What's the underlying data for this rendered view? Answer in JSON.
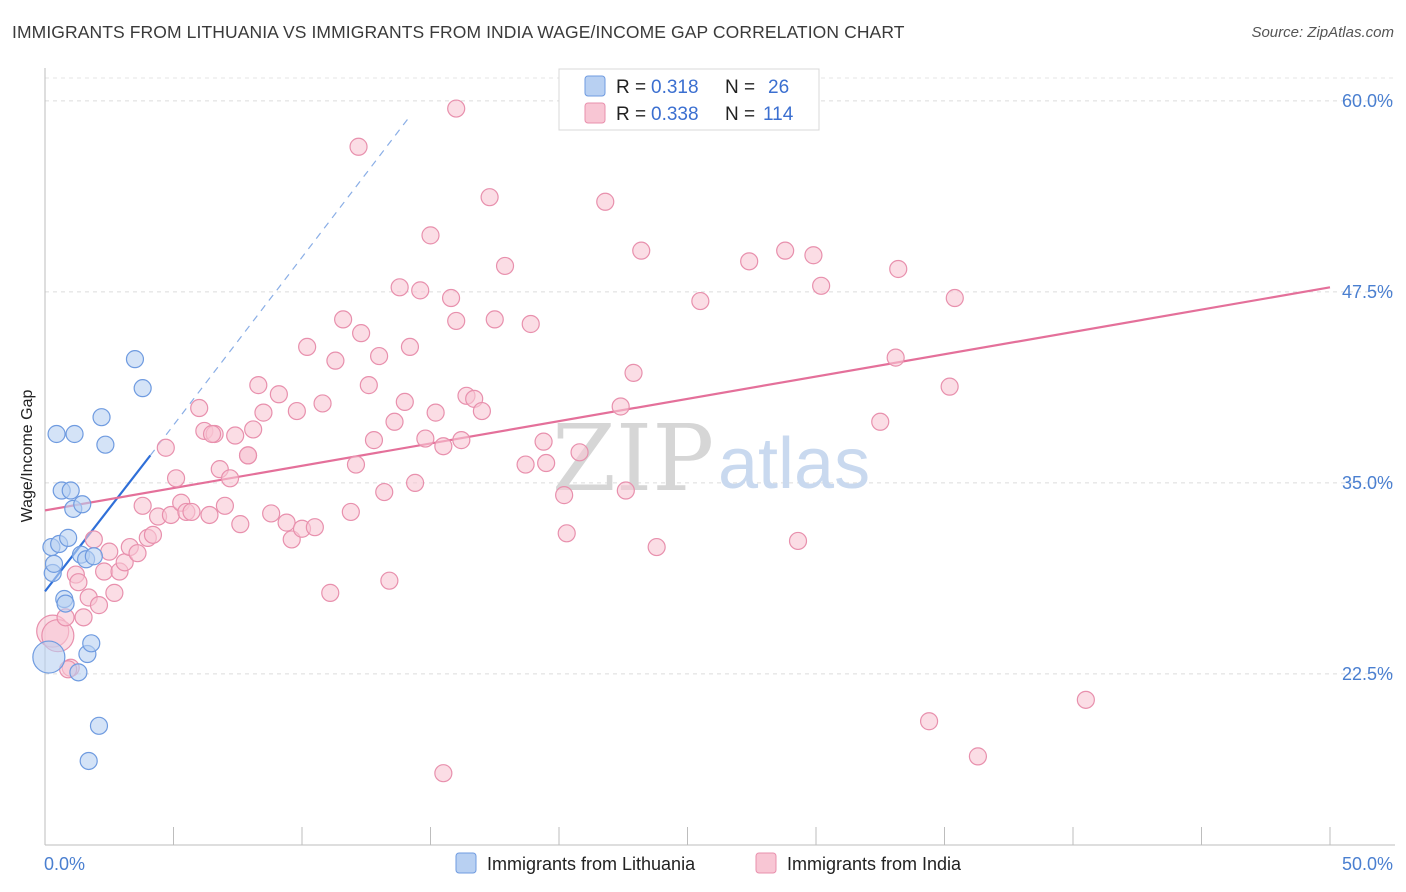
{
  "title": "IMMIGRANTS FROM LITHUANIA VS IMMIGRANTS FROM INDIA WAGE/INCOME GAP CORRELATION CHART",
  "source": "Source: ZipAtlas.com",
  "watermark": {
    "zip": "ZIP",
    "atlas": "atlas"
  },
  "legend": {
    "r_label": "R =",
    "n_label": "N =",
    "entries": [
      {
        "r": "0.318",
        "n": "26",
        "fill": "#b8d0f2",
        "stroke": "#6f9be0"
      },
      {
        "r": "0.338",
        "n": "114",
        "fill": "#f8c6d4",
        "stroke": "#e890ad"
      }
    ]
  },
  "chart_data": {
    "type": "scatter",
    "title": "IMMIGRANTS FROM LITHUANIA VS IMMIGRANTS FROM INDIA WAGE/INCOME GAP CORRELATION CHART",
    "xlabel": "",
    "ylabel": "Wage/Income Gap",
    "xlim": [
      0,
      50
    ],
    "ylim": [
      11.3,
      61.5
    ],
    "x_tick_labels": [
      "0.0%",
      "50.0%"
    ],
    "x_minor_ticks": [
      0,
      5,
      10,
      15,
      20,
      25,
      30,
      35,
      40,
      45,
      50
    ],
    "y_ticks": [
      22.5,
      35.0,
      47.5,
      60.0
    ],
    "y_tick_labels": [
      "22.5%",
      "35.0%",
      "47.5%",
      "60.0%"
    ],
    "grid": true,
    "legend_position": "top-center",
    "series": [
      {
        "name": "Immigrants from Lithuania",
        "color": "#6f9be0",
        "fill": "#b8d0f2",
        "trend": {
          "x": [
            0.0,
            4.1
          ],
          "y": [
            27.9,
            36.8
          ],
          "color": "#2f6fd8"
        },
        "trend_extension": {
          "x": [
            4.1,
            14.2
          ],
          "y": [
            36.8,
            59.0
          ]
        },
        "points": [
          {
            "x": 0.15,
            "y": 23.6,
            "big": true
          },
          {
            "x": 0.25,
            "y": 30.8
          },
          {
            "x": 0.3,
            "y": 29.1
          },
          {
            "x": 0.35,
            "y": 29.7
          },
          {
            "x": 0.45,
            "y": 38.2
          },
          {
            "x": 0.55,
            "y": 31.0
          },
          {
            "x": 0.65,
            "y": 34.5
          },
          {
            "x": 0.75,
            "y": 27.4
          },
          {
            "x": 0.8,
            "y": 27.1
          },
          {
            "x": 0.9,
            "y": 31.4
          },
          {
            "x": 1.0,
            "y": 34.5
          },
          {
            "x": 1.1,
            "y": 33.3
          },
          {
            "x": 1.15,
            "y": 38.2
          },
          {
            "x": 1.3,
            "y": 22.6
          },
          {
            "x": 1.4,
            "y": 30.3
          },
          {
            "x": 1.45,
            "y": 33.6
          },
          {
            "x": 1.6,
            "y": 30.0
          },
          {
            "x": 1.65,
            "y": 23.8
          },
          {
            "x": 1.7,
            "y": 16.8
          },
          {
            "x": 1.8,
            "y": 24.5
          },
          {
            "x": 1.9,
            "y": 30.2
          },
          {
            "x": 2.1,
            "y": 19.1
          },
          {
            "x": 2.2,
            "y": 39.3
          },
          {
            "x": 2.35,
            "y": 37.5
          },
          {
            "x": 3.5,
            "y": 43.1
          },
          {
            "x": 3.8,
            "y": 41.2
          }
        ]
      },
      {
        "name": "Immigrants from India",
        "color": "#e890ad",
        "fill": "#f8c6d4",
        "trend": {
          "x": [
            0.0,
            50.0
          ],
          "y": [
            33.2,
            47.8
          ],
          "color": "#e4709a"
        },
        "points": [
          {
            "x": 0.3,
            "y": 25.3,
            "big": true
          },
          {
            "x": 0.5,
            "y": 25.0,
            "big": true
          },
          {
            "x": 0.8,
            "y": 26.2
          },
          {
            "x": 1.0,
            "y": 22.9
          },
          {
            "x": 1.2,
            "y": 29.0
          },
          {
            "x": 1.3,
            "y": 28.5
          },
          {
            "x": 1.5,
            "y": 26.2
          },
          {
            "x": 1.7,
            "y": 27.5
          },
          {
            "x": 1.9,
            "y": 31.3
          },
          {
            "x": 2.1,
            "y": 27.0
          },
          {
            "x": 2.3,
            "y": 29.2
          },
          {
            "x": 2.5,
            "y": 30.5
          },
          {
            "x": 2.7,
            "y": 27.8
          },
          {
            "x": 2.9,
            "y": 29.2
          },
          {
            "x": 3.1,
            "y": 29.8
          },
          {
            "x": 3.3,
            "y": 30.8
          },
          {
            "x": 3.6,
            "y": 30.4
          },
          {
            "x": 3.8,
            "y": 33.5
          },
          {
            "x": 4.0,
            "y": 31.4
          },
          {
            "x": 4.2,
            "y": 31.6
          },
          {
            "x": 4.4,
            "y": 32.8
          },
          {
            "x": 4.7,
            "y": 37.3
          },
          {
            "x": 4.9,
            "y": 32.9
          },
          {
            "x": 5.1,
            "y": 35.3
          },
          {
            "x": 5.3,
            "y": 33.7
          },
          {
            "x": 5.5,
            "y": 33.1
          },
          {
            "x": 5.7,
            "y": 33.1
          },
          {
            "x": 6.0,
            "y": 39.9
          },
          {
            "x": 6.2,
            "y": 38.4
          },
          {
            "x": 6.4,
            "y": 32.9
          },
          {
            "x": 6.6,
            "y": 38.2
          },
          {
            "x": 6.8,
            "y": 35.9
          },
          {
            "x": 7.0,
            "y": 33.5
          },
          {
            "x": 7.2,
            "y": 35.3
          },
          {
            "x": 7.4,
            "y": 38.1
          },
          {
            "x": 7.6,
            "y": 32.3
          },
          {
            "x": 7.9,
            "y": 36.8
          },
          {
            "x": 8.1,
            "y": 38.5
          },
          {
            "x": 8.3,
            "y": 41.4
          },
          {
            "x": 8.5,
            "y": 39.6
          },
          {
            "x": 8.8,
            "y": 33.0
          },
          {
            "x": 9.1,
            "y": 40.8
          },
          {
            "x": 9.4,
            "y": 32.4
          },
          {
            "x": 9.6,
            "y": 31.3
          },
          {
            "x": 9.8,
            "y": 39.7
          },
          {
            "x": 10.0,
            "y": 32.0
          },
          {
            "x": 10.2,
            "y": 43.9
          },
          {
            "x": 10.5,
            "y": 32.1
          },
          {
            "x": 10.8,
            "y": 40.2
          },
          {
            "x": 11.1,
            "y": 27.8
          },
          {
            "x": 11.3,
            "y": 43.0
          },
          {
            "x": 11.6,
            "y": 45.7
          },
          {
            "x": 11.9,
            "y": 33.1
          },
          {
            "x": 12.1,
            "y": 36.2
          },
          {
            "x": 12.3,
            "y": 44.8
          },
          {
            "x": 12.6,
            "y": 41.4
          },
          {
            "x": 12.8,
            "y": 37.8
          },
          {
            "x": 13.0,
            "y": 43.3
          },
          {
            "x": 13.2,
            "y": 34.4
          },
          {
            "x": 13.4,
            "y": 28.6
          },
          {
            "x": 13.6,
            "y": 39.0
          },
          {
            "x": 13.8,
            "y": 47.8
          },
          {
            "x": 14.0,
            "y": 40.3
          },
          {
            "x": 14.2,
            "y": 43.9
          },
          {
            "x": 14.4,
            "y": 35.0
          },
          {
            "x": 14.6,
            "y": 47.6
          },
          {
            "x": 14.8,
            "y": 37.9
          },
          {
            "x": 15.0,
            "y": 51.2
          },
          {
            "x": 15.2,
            "y": 39.6
          },
          {
            "x": 15.5,
            "y": 37.4
          },
          {
            "x": 15.8,
            "y": 47.1
          },
          {
            "x": 16.0,
            "y": 45.6
          },
          {
            "x": 16.2,
            "y": 37.8
          },
          {
            "x": 16.4,
            "y": 40.7
          },
          {
            "x": 16.7,
            "y": 40.5
          },
          {
            "x": 17.0,
            "y": 39.7
          },
          {
            "x": 17.3,
            "y": 53.7
          },
          {
            "x": 17.5,
            "y": 45.7
          },
          {
            "x": 17.9,
            "y": 49.2
          },
          {
            "x": 18.9,
            "y": 45.4
          },
          {
            "x": 18.7,
            "y": 36.2
          },
          {
            "x": 19.4,
            "y": 37.7
          },
          {
            "x": 19.5,
            "y": 36.3
          },
          {
            "x": 20.2,
            "y": 34.2
          },
          {
            "x": 20.3,
            "y": 31.7
          },
          {
            "x": 20.8,
            "y": 37.0
          },
          {
            "x": 21.8,
            "y": 53.4
          },
          {
            "x": 22.4,
            "y": 40.0
          },
          {
            "x": 22.6,
            "y": 34.5
          },
          {
            "x": 22.9,
            "y": 42.2
          },
          {
            "x": 23.2,
            "y": 50.2
          },
          {
            "x": 23.8,
            "y": 30.8
          },
          {
            "x": 25.5,
            "y": 46.9
          },
          {
            "x": 27.4,
            "y": 49.5
          },
          {
            "x": 28.8,
            "y": 50.2
          },
          {
            "x": 29.3,
            "y": 31.2
          },
          {
            "x": 29.9,
            "y": 49.9
          },
          {
            "x": 30.2,
            "y": 47.9
          },
          {
            "x": 32.5,
            "y": 39.0
          },
          {
            "x": 33.1,
            "y": 43.2
          },
          {
            "x": 33.2,
            "y": 49.0
          },
          {
            "x": 34.4,
            "y": 19.4
          },
          {
            "x": 35.2,
            "y": 41.3
          },
          {
            "x": 35.4,
            "y": 47.1
          },
          {
            "x": 36.3,
            "y": 17.1
          },
          {
            "x": 40.5,
            "y": 20.8
          },
          {
            "x": 16.0,
            "y": 59.5
          },
          {
            "x": 12.2,
            "y": 57.0
          },
          {
            "x": 15.5,
            "y": 16.0
          },
          {
            "x": 0.9,
            "y": 22.8
          },
          {
            "x": 6.5,
            "y": 38.2
          },
          {
            "x": 7.9,
            "y": 36.8
          }
        ]
      }
    ]
  },
  "bottom_legend": [
    {
      "label": "Immigrants from Lithuania",
      "fill": "#b8d0f2",
      "stroke": "#6f9be0"
    },
    {
      "label": "Immigrants from India",
      "fill": "#f8c6d4",
      "stroke": "#e890ad"
    }
  ]
}
